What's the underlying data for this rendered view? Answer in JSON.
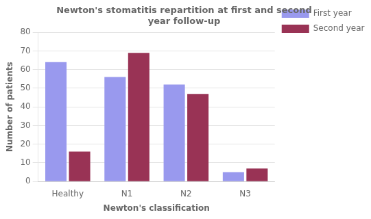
{
  "chart_data": {
    "type": "bar",
    "title": "Newton's stomatitis repartition at first and second\nyear follow-up",
    "xlabel": "Newton's classification",
    "ylabel": "Number of patients",
    "categories": [
      "Healthy",
      "N1",
      "N2",
      "N3"
    ],
    "series": [
      {
        "name": "First year",
        "color": "#9999ee",
        "values": [
          64,
          56,
          52,
          5
        ]
      },
      {
        "name": "Second year",
        "color": "#993355",
        "values": [
          16,
          69,
          47,
          7
        ]
      }
    ],
    "ylim": [
      0,
      80
    ],
    "yticks": [
      0,
      10,
      20,
      30,
      40,
      50,
      60,
      70,
      80
    ],
    "grid": true,
    "legend": "right"
  }
}
